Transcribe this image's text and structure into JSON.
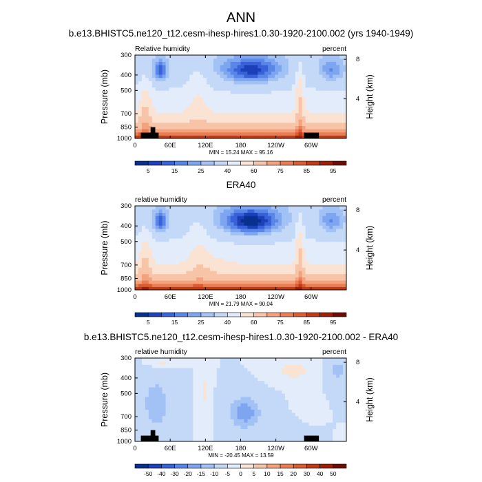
{
  "figure": {
    "title": "ANN",
    "colors": {
      "background": "#ffffff",
      "frame": "#000000",
      "topography": "#000000"
    }
  },
  "chart_data": [
    {
      "type": "heatmap",
      "panel": "model",
      "title": "b.e13.BHISTC5.ne120_t12.cesm-ihesp-hires1.0.30-1920-2100.002 (yrs 1940-1949)",
      "left_label": "Relative humidity",
      "right_label": "percent",
      "xlabel": "",
      "ylabel": "Pressure (mb)",
      "y2label": "Height (km)",
      "xticks": [
        "0",
        "60E",
        "120E",
        "180",
        "120W",
        "60W"
      ],
      "yticks": [
        "300",
        "400",
        "500",
        "700",
        "850",
        "1000"
      ],
      "y2ticks": [
        "8",
        "4"
      ],
      "minmax": "MIN = 15.24   MAX = 95.16",
      "colorbar_levels": [
        5,
        10,
        15,
        20,
        25,
        30,
        40,
        50,
        60,
        70,
        75,
        80,
        85,
        90,
        95
      ],
      "colorbar_labels": [
        "5",
        "15",
        "25",
        "40",
        "60",
        "75",
        "85",
        "95"
      ],
      "colors": [
        "#08308f",
        "#1d3fb8",
        "#3a62d8",
        "#5a86e8",
        "#7ea6f0",
        "#a2c2f5",
        "#c4d9f8",
        "#e2ecfa",
        "#fbe3d4",
        "#f8c4a8",
        "#f2a37d",
        "#e97e55",
        "#d95c32",
        "#c03a17",
        "#9e1f08",
        "#6e0e02"
      ],
      "zlim": [
        15.24,
        95.16
      ],
      "topography": true
    },
    {
      "type": "heatmap",
      "panel": "observation",
      "title": "ERA40",
      "left_label": "relative humidity",
      "right_label": "percent",
      "xlabel": "",
      "ylabel": "Pressure (mb)",
      "y2label": "Height (km)",
      "xticks": [
        "0",
        "60E",
        "120E",
        "180",
        "120W",
        "60W"
      ],
      "yticks": [
        "300",
        "400",
        "500",
        "700",
        "850",
        "1000"
      ],
      "y2ticks": [
        "8",
        "4"
      ],
      "minmax": "MIN = 21.79   MAX = 90.04",
      "colorbar_levels": [
        5,
        10,
        15,
        20,
        25,
        30,
        40,
        50,
        60,
        70,
        75,
        80,
        85,
        90,
        95
      ],
      "colorbar_labels": [
        "5",
        "15",
        "25",
        "40",
        "60",
        "75",
        "85",
        "95"
      ],
      "colors": [
        "#08308f",
        "#1d3fb8",
        "#3a62d8",
        "#5a86e8",
        "#7ea6f0",
        "#a2c2f5",
        "#c4d9f8",
        "#e2ecfa",
        "#fbe3d4",
        "#f8c4a8",
        "#f2a37d",
        "#e97e55",
        "#d95c32",
        "#c03a17",
        "#9e1f08",
        "#6e0e02"
      ],
      "zlim": [
        21.79,
        90.04
      ],
      "topography": false
    },
    {
      "type": "heatmap",
      "panel": "difference",
      "title": "b.e13.BHISTC5.ne120_t12.cesm-ihesp-hires1.0.30-1920-2100.002 - ERA40",
      "left_label": "relative humidity",
      "right_label": "percent",
      "xlabel": "",
      "ylabel": "Pressure (mb)",
      "y2label": "Height (km)",
      "xticks": [
        "0",
        "60E",
        "120E",
        "180",
        "120W",
        "60W"
      ],
      "yticks": [
        "300",
        "400",
        "500",
        "700",
        "850",
        "1000"
      ],
      "y2ticks": [
        "8",
        "4"
      ],
      "minmax": "MIN = -20.45   MAX = 13.59",
      "colorbar_levels": [
        -50,
        -40,
        -30,
        -20,
        -15,
        -10,
        -5,
        0,
        5,
        10,
        15,
        20,
        30,
        40,
        50
      ],
      "colorbar_labels": [
        "-50",
        "-40",
        "-30",
        "-20",
        "-15",
        "-10",
        "-5",
        "0",
        "5",
        "10",
        "15",
        "20",
        "30",
        "40",
        "50"
      ],
      "colors": [
        "#08308f",
        "#1d3fb8",
        "#3a62d8",
        "#5a86e8",
        "#7ea6f0",
        "#a2c2f5",
        "#c4d9f8",
        "#e2ecfa",
        "#fbe3d4",
        "#f8c4a8",
        "#f2a37d",
        "#e97e55",
        "#d95c32",
        "#c03a17",
        "#9e1f08",
        "#6e0e02"
      ],
      "zlim": [
        -20.45,
        13.59
      ],
      "topography": true
    }
  ]
}
